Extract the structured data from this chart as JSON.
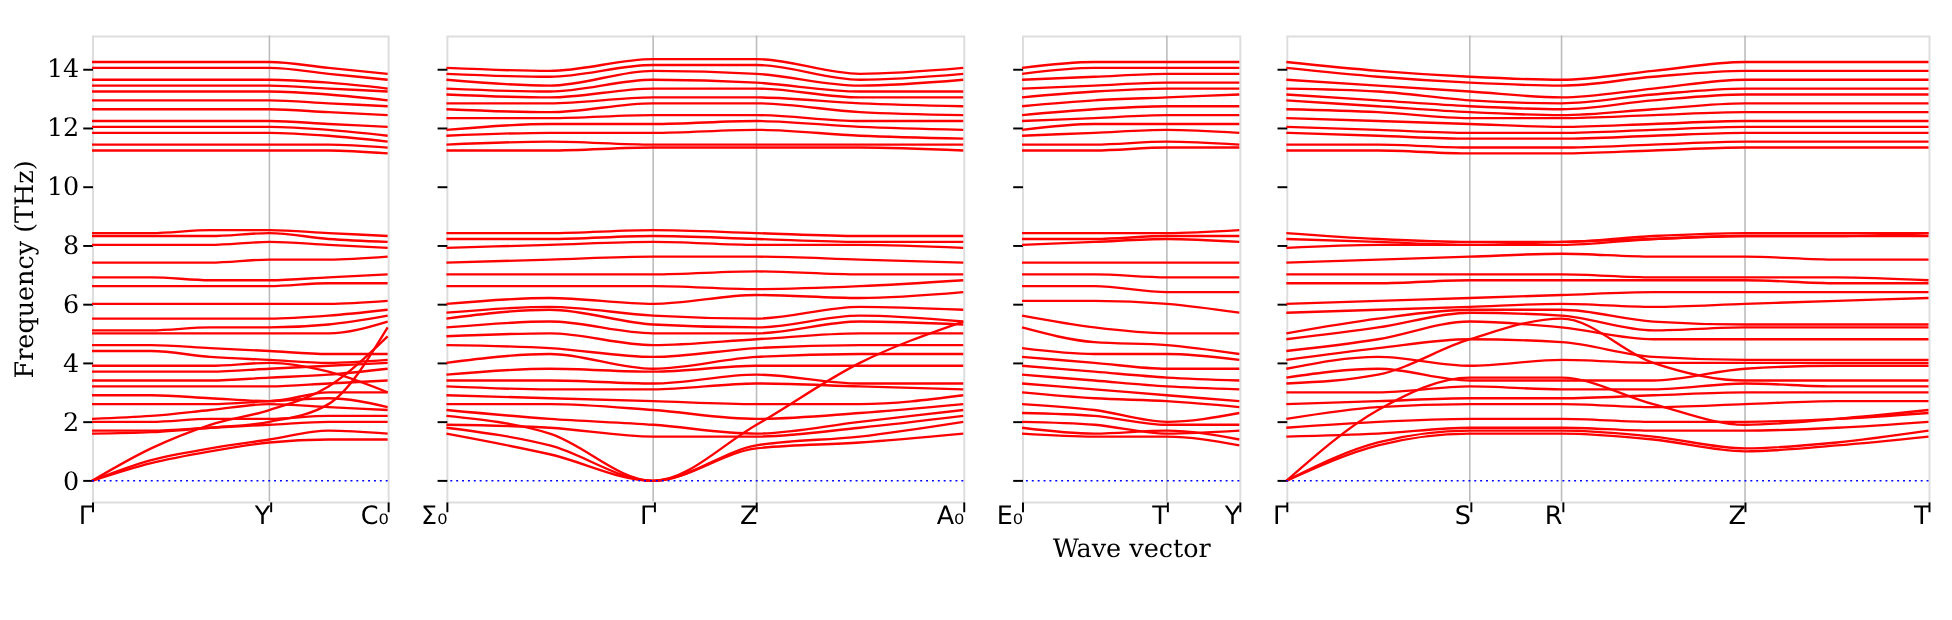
{
  "chart_data": [
    {
      "type": "line",
      "ylabel": "Frequency (THz)",
      "categories": [
        "Γ",
        null,
        null,
        "Y",
        null,
        "C₀"
      ],
      "ylim": [
        -0.7,
        15.1
      ],
      "yticks": [
        0,
        2,
        4,
        6,
        8,
        10,
        12,
        14
      ],
      "marker": "none",
      "line_style": "solid",
      "legend": false,
      "ref_lines": [
        {
          "axis": "y",
          "value": 0,
          "color": "#0000ff",
          "line_style": "dotted"
        },
        {
          "axis": "x",
          "value": "Y",
          "color": "#bbbbbb",
          "line_style": "solid"
        }
      ],
      "series": [
        {
          "color": "#ff0000",
          "values": [
            0,
            0.6,
            1.0,
            1.3,
            1.4,
            1.4
          ]
        },
        {
          "color": "#ff0000",
          "values": [
            0,
            0.7,
            1.1,
            1.4,
            1.7,
            1.6
          ]
        },
        {
          "color": "#ff0000",
          "values": [
            0,
            1.1,
            1.9,
            2.4,
            3.2,
            4.9
          ]
        },
        {
          "color": "#ff0000",
          "values": [
            1.6,
            1.65,
            1.8,
            2.0,
            2.6,
            5.2
          ]
        },
        {
          "color": "#ff0000",
          "values": [
            1.7,
            1.7,
            1.8,
            1.9,
            2.0,
            2.0
          ]
        },
        {
          "color": "#ff0000",
          "values": [
            2.0,
            2.0,
            2.1,
            2.1,
            2.2,
            2.2
          ]
        },
        {
          "color": "#ff0000",
          "values": [
            2.1,
            2.2,
            2.4,
            2.6,
            2.5,
            2.4
          ]
        },
        {
          "color": "#ff0000",
          "values": [
            2.6,
            2.6,
            2.6,
            2.7,
            2.8,
            2.5
          ]
        },
        {
          "color": "#ff0000",
          "values": [
            2.9,
            2.9,
            2.8,
            2.7,
            3.0,
            3.0
          ]
        },
        {
          "color": "#ff0000",
          "values": [
            3.2,
            3.2,
            3.2,
            3.2,
            3.3,
            3.4
          ]
        },
        {
          "color": "#ff0000",
          "values": [
            3.4,
            3.4,
            3.4,
            3.5,
            3.6,
            3.8
          ]
        },
        {
          "color": "#ff0000",
          "values": [
            3.7,
            3.7,
            3.7,
            3.8,
            3.9,
            4.0
          ]
        },
        {
          "color": "#ff0000",
          "values": [
            3.9,
            3.9,
            3.9,
            4.0,
            3.7,
            3.0
          ]
        },
        {
          "color": "#ff0000",
          "values": [
            4.4,
            4.4,
            4.2,
            4.1,
            4.0,
            4.1
          ]
        },
        {
          "color": "#ff0000",
          "values": [
            4.6,
            4.6,
            4.5,
            4.4,
            4.3,
            4.3
          ]
        },
        {
          "color": "#ff0000",
          "values": [
            5.0,
            5.0,
            5.0,
            5.0,
            5.0,
            5.4
          ]
        },
        {
          "color": "#ff0000",
          "values": [
            5.1,
            5.1,
            5.2,
            5.2,
            5.3,
            5.6
          ]
        },
        {
          "color": "#ff0000",
          "values": [
            5.5,
            5.5,
            5.5,
            5.5,
            5.6,
            5.8
          ]
        },
        {
          "color": "#ff0000",
          "values": [
            6.0,
            6.0,
            6.0,
            6.0,
            6.0,
            6.1
          ]
        },
        {
          "color": "#ff0000",
          "values": [
            6.6,
            6.6,
            6.6,
            6.6,
            6.7,
            6.7
          ]
        },
        {
          "color": "#ff0000",
          "values": [
            6.9,
            6.9,
            6.8,
            6.8,
            6.9,
            7.0
          ]
        },
        {
          "color": "#ff0000",
          "values": [
            7.4,
            7.4,
            7.4,
            7.5,
            7.5,
            7.6
          ]
        },
        {
          "color": "#ff0000",
          "values": [
            8.0,
            8.0,
            8.0,
            8.1,
            8.0,
            7.9
          ]
        },
        {
          "color": "#ff0000",
          "values": [
            8.3,
            8.3,
            8.3,
            8.4,
            8.2,
            8.1
          ]
        },
        {
          "color": "#ff0000",
          "values": [
            8.4,
            8.4,
            8.5,
            8.5,
            8.4,
            8.3
          ]
        },
        {
          "color": "#ff0000",
          "values": [
            11.2,
            11.2,
            11.2,
            11.2,
            11.2,
            11.1
          ]
        },
        {
          "color": "#ff0000",
          "values": [
            11.4,
            11.4,
            11.4,
            11.4,
            11.4,
            11.3
          ]
        },
        {
          "color": "#ff0000",
          "values": [
            11.8,
            11.8,
            11.8,
            11.8,
            11.7,
            11.5
          ]
        },
        {
          "color": "#ff0000",
          "values": [
            12.0,
            12.0,
            12.0,
            12.0,
            11.9,
            11.7
          ]
        },
        {
          "color": "#ff0000",
          "values": [
            12.2,
            12.2,
            12.2,
            12.2,
            12.1,
            12.0
          ]
        },
        {
          "color": "#ff0000",
          "values": [
            12.6,
            12.6,
            12.6,
            12.6,
            12.5,
            12.4
          ]
        },
        {
          "color": "#ff0000",
          "values": [
            12.9,
            12.9,
            12.9,
            12.9,
            12.8,
            12.7
          ]
        },
        {
          "color": "#ff0000",
          "values": [
            13.2,
            13.2,
            13.2,
            13.2,
            13.1,
            12.9
          ]
        },
        {
          "color": "#ff0000",
          "values": [
            13.4,
            13.4,
            13.4,
            13.4,
            13.3,
            13.2
          ]
        },
        {
          "color": "#ff0000",
          "values": [
            13.6,
            13.6,
            13.6,
            13.6,
            13.5,
            13.3
          ]
        },
        {
          "color": "#ff0000",
          "values": [
            14.0,
            14.0,
            14.0,
            14.0,
            13.8,
            13.6
          ]
        },
        {
          "color": "#ff0000",
          "values": [
            14.2,
            14.2,
            14.2,
            14.2,
            14.0,
            13.8
          ]
        }
      ]
    },
    {
      "type": "line",
      "categories": [
        "Σ₀",
        null,
        "Γ",
        "Z",
        null,
        "A₀"
      ],
      "ylim": [
        -0.7,
        15.1
      ],
      "yticks": [
        0,
        2,
        4,
        6,
        8,
        10,
        12,
        14
      ],
      "tick_labels": "x",
      "marker": "none",
      "line_style": "solid",
      "legend": false,
      "ref_lines": [
        {
          "axis": "y",
          "value": 0,
          "color": "#0000ff",
          "line_style": "dotted"
        },
        {
          "axis": "x",
          "value": "Γ",
          "color": "#bbbbbb",
          "line_style": "solid"
        },
        {
          "axis": "x",
          "value": "Z",
          "color": "#bbbbbb",
          "line_style": "solid"
        }
      ],
      "series": [
        {
          "color": "#ff0000",
          "values": [
            1.6,
            0.9,
            0,
            1.1,
            1.3,
            1.6
          ]
        },
        {
          "color": "#ff0000",
          "values": [
            1.8,
            1.2,
            0,
            1.2,
            1.5,
            2.0
          ]
        },
        {
          "color": "#ff0000",
          "values": [
            2.2,
            1.6,
            0,
            1.9,
            4.0,
            5.4
          ]
        },
        {
          "color": "#ff0000",
          "values": [
            1.9,
            1.8,
            1.5,
            1.5,
            1.8,
            2.2
          ]
        },
        {
          "color": "#ff0000",
          "values": [
            2.4,
            2.1,
            1.9,
            1.6,
            2.0,
            2.4
          ]
        },
        {
          "color": "#ff0000",
          "values": [
            2.6,
            2.6,
            2.4,
            2.1,
            2.3,
            2.6
          ]
        },
        {
          "color": "#ff0000",
          "values": [
            2.9,
            2.8,
            2.7,
            2.6,
            2.6,
            2.9
          ]
        },
        {
          "color": "#ff0000",
          "values": [
            3.2,
            3.1,
            3.1,
            3.3,
            3.2,
            3.1
          ]
        },
        {
          "color": "#ff0000",
          "values": [
            3.4,
            3.4,
            3.3,
            3.6,
            3.3,
            3.3
          ]
        },
        {
          "color": "#ff0000",
          "values": [
            3.6,
            3.8,
            3.7,
            3.9,
            3.9,
            3.9
          ]
        },
        {
          "color": "#ff0000",
          "values": [
            4.0,
            4.3,
            3.8,
            4.2,
            4.3,
            4.3
          ]
        },
        {
          "color": "#ff0000",
          "values": [
            4.6,
            4.5,
            4.2,
            4.5,
            4.6,
            4.6
          ]
        },
        {
          "color": "#ff0000",
          "values": [
            4.9,
            5.0,
            4.6,
            4.8,
            5.0,
            5.0
          ]
        },
        {
          "color": "#ff0000",
          "values": [
            5.2,
            5.4,
            5.0,
            5.0,
            5.4,
            5.3
          ]
        },
        {
          "color": "#ff0000",
          "values": [
            5.5,
            5.8,
            5.3,
            5.2,
            5.6,
            5.4
          ]
        },
        {
          "color": "#ff0000",
          "values": [
            5.7,
            5.9,
            5.6,
            5.5,
            5.9,
            5.8
          ]
        },
        {
          "color": "#ff0000",
          "values": [
            6.0,
            6.2,
            6.0,
            6.3,
            6.2,
            6.4
          ]
        },
        {
          "color": "#ff0000",
          "values": [
            6.6,
            6.6,
            6.6,
            6.5,
            6.6,
            6.8
          ]
        },
        {
          "color": "#ff0000",
          "values": [
            7.0,
            7.0,
            7.0,
            7.1,
            7.0,
            7.0
          ]
        },
        {
          "color": "#ff0000",
          "values": [
            7.4,
            7.5,
            7.6,
            7.6,
            7.5,
            7.4
          ]
        },
        {
          "color": "#ff0000",
          "values": [
            7.9,
            8.0,
            8.1,
            8.0,
            8.0,
            7.9
          ]
        },
        {
          "color": "#ff0000",
          "values": [
            8.2,
            8.2,
            8.3,
            8.2,
            8.1,
            8.1
          ]
        },
        {
          "color": "#ff0000",
          "values": [
            8.4,
            8.4,
            8.5,
            8.4,
            8.3,
            8.3
          ]
        },
        {
          "color": "#ff0000",
          "values": [
            11.2,
            11.2,
            11.3,
            11.3,
            11.3,
            11.2
          ]
        },
        {
          "color": "#ff0000",
          "values": [
            11.4,
            11.5,
            11.4,
            11.4,
            11.4,
            11.4
          ]
        },
        {
          "color": "#ff0000",
          "values": [
            11.7,
            11.8,
            11.8,
            11.9,
            11.7,
            11.6
          ]
        },
        {
          "color": "#ff0000",
          "values": [
            11.9,
            12.1,
            12.1,
            12.2,
            12.0,
            11.9
          ]
        },
        {
          "color": "#ff0000",
          "values": [
            12.3,
            12.3,
            12.4,
            12.4,
            12.2,
            12.2
          ]
        },
        {
          "color": "#ff0000",
          "values": [
            12.6,
            12.5,
            12.8,
            12.8,
            12.5,
            12.4
          ]
        },
        {
          "color": "#ff0000",
          "values": [
            12.8,
            12.8,
            13.0,
            13.0,
            12.8,
            12.7
          ]
        },
        {
          "color": "#ff0000",
          "values": [
            13.1,
            13.0,
            13.3,
            13.3,
            13.0,
            13.0
          ]
        },
        {
          "color": "#ff0000",
          "values": [
            13.3,
            13.2,
            13.6,
            13.5,
            13.2,
            13.2
          ]
        },
        {
          "color": "#ff0000",
          "values": [
            13.6,
            13.4,
            13.9,
            13.8,
            13.4,
            13.6
          ]
        },
        {
          "color": "#ff0000",
          "values": [
            13.8,
            13.7,
            14.1,
            14.1,
            13.6,
            13.8
          ]
        },
        {
          "color": "#ff0000",
          "values": [
            14.0,
            13.9,
            14.3,
            14.3,
            13.8,
            14.0
          ]
        }
      ]
    },
    {
      "type": "line",
      "xlabel": "Wave vector",
      "categories": [
        "E₀",
        null,
        "T",
        "Y"
      ],
      "ylim": [
        -0.7,
        15.1
      ],
      "yticks": [
        0,
        2,
        4,
        6,
        8,
        10,
        12,
        14
      ],
      "tick_labels": "x",
      "marker": "none",
      "line_style": "solid",
      "legend": false,
      "ref_lines": [
        {
          "axis": "y",
          "value": 0,
          "color": "#0000ff",
          "line_style": "dotted"
        },
        {
          "axis": "x",
          "value": "T",
          "color": "#bbbbbb",
          "line_style": "solid"
        }
      ],
      "series": [
        {
          "color": "#ff0000",
          "values": [
            1.6,
            1.5,
            1.5,
            1.2
          ]
        },
        {
          "color": "#ff0000",
          "values": [
            1.8,
            1.6,
            1.7,
            1.4
          ]
        },
        {
          "color": "#ff0000",
          "values": [
            2.0,
            1.9,
            1.6,
            1.7
          ]
        },
        {
          "color": "#ff0000",
          "values": [
            2.3,
            2.2,
            1.9,
            1.9
          ]
        },
        {
          "color": "#ff0000",
          "values": [
            2.6,
            2.4,
            2.0,
            2.3
          ]
        },
        {
          "color": "#ff0000",
          "values": [
            3.0,
            2.8,
            2.7,
            2.5
          ]
        },
        {
          "color": "#ff0000",
          "values": [
            3.3,
            3.1,
            2.9,
            2.7
          ]
        },
        {
          "color": "#ff0000",
          "values": [
            3.6,
            3.4,
            3.2,
            3.1
          ]
        },
        {
          "color": "#ff0000",
          "values": [
            3.9,
            3.7,
            3.5,
            3.4
          ]
        },
        {
          "color": "#ff0000",
          "values": [
            4.2,
            4.0,
            3.8,
            3.8
          ]
        },
        {
          "color": "#ff0000",
          "values": [
            4.5,
            4.3,
            4.3,
            4.1
          ]
        },
        {
          "color": "#ff0000",
          "values": [
            5.2,
            4.7,
            4.6,
            4.3
          ]
        },
        {
          "color": "#ff0000",
          "values": [
            5.6,
            5.2,
            5.0,
            5.0
          ]
        },
        {
          "color": "#ff0000",
          "values": [
            6.1,
            6.1,
            6.0,
            5.7
          ]
        },
        {
          "color": "#ff0000",
          "values": [
            6.6,
            6.6,
            6.4,
            6.4
          ]
        },
        {
          "color": "#ff0000",
          "values": [
            7.0,
            7.0,
            6.9,
            6.9
          ]
        },
        {
          "color": "#ff0000",
          "values": [
            7.4,
            7.4,
            7.4,
            7.4
          ]
        },
        {
          "color": "#ff0000",
          "values": [
            8.0,
            8.1,
            8.2,
            8.1
          ]
        },
        {
          "color": "#ff0000",
          "values": [
            8.2,
            8.2,
            8.3,
            8.3
          ]
        },
        {
          "color": "#ff0000",
          "values": [
            8.4,
            8.4,
            8.4,
            8.5
          ]
        },
        {
          "color": "#ff0000",
          "values": [
            11.2,
            11.2,
            11.3,
            11.3
          ]
        },
        {
          "color": "#ff0000",
          "values": [
            11.4,
            11.4,
            11.5,
            11.4
          ]
        },
        {
          "color": "#ff0000",
          "values": [
            11.7,
            11.8,
            11.9,
            11.8
          ]
        },
        {
          "color": "#ff0000",
          "values": [
            11.9,
            12.1,
            12.1,
            12.1
          ]
        },
        {
          "color": "#ff0000",
          "values": [
            12.2,
            12.3,
            12.4,
            12.4
          ]
        },
        {
          "color": "#ff0000",
          "values": [
            12.4,
            12.6,
            12.7,
            12.7
          ]
        },
        {
          "color": "#ff0000",
          "values": [
            12.7,
            12.9,
            13.0,
            13.1
          ]
        },
        {
          "color": "#ff0000",
          "values": [
            13.0,
            13.2,
            13.3,
            13.3
          ]
        },
        {
          "color": "#ff0000",
          "values": [
            13.3,
            13.4,
            13.5,
            13.5
          ]
        },
        {
          "color": "#ff0000",
          "values": [
            13.6,
            13.7,
            13.8,
            13.8
          ]
        },
        {
          "color": "#ff0000",
          "values": [
            13.8,
            14.0,
            14.0,
            14.0
          ]
        },
        {
          "color": "#ff0000",
          "values": [
            14.0,
            14.2,
            14.2,
            14.2
          ]
        }
      ]
    },
    {
      "type": "line",
      "categories": [
        "Γ",
        null,
        "S",
        "R",
        null,
        "Z",
        null,
        "T"
      ],
      "ylim": [
        -0.7,
        15.1
      ],
      "yticks": [
        0,
        2,
        4,
        6,
        8,
        10,
        12,
        14
      ],
      "tick_labels": "x",
      "marker": "none",
      "line_style": "solid",
      "legend": false,
      "ref_lines": [
        {
          "axis": "y",
          "value": 0,
          "color": "#0000ff",
          "line_style": "dotted"
        },
        {
          "axis": "x",
          "value": "S",
          "color": "#bbbbbb",
          "line_style": "solid"
        },
        {
          "axis": "x",
          "value": "R",
          "color": "#bbbbbb",
          "line_style": "solid"
        },
        {
          "axis": "x",
          "value": "Z",
          "color": "#bbbbbb",
          "line_style": "solid"
        }
      ],
      "series": [
        {
          "color": "#ff0000",
          "values": [
            0,
            1.2,
            1.6,
            1.6,
            1.4,
            1.0,
            1.2,
            1.5
          ]
        },
        {
          "color": "#ff0000",
          "values": [
            0,
            1.3,
            1.7,
            1.7,
            1.5,
            1.1,
            1.3,
            1.7
          ]
        },
        {
          "color": "#ff0000",
          "values": [
            0,
            2.4,
            3.5,
            3.5,
            2.6,
            1.9,
            2.1,
            2.4
          ]
        },
        {
          "color": "#ff0000",
          "values": [
            1.5,
            1.6,
            1.8,
            1.8,
            1.7,
            1.7,
            1.8,
            2.0
          ]
        },
        {
          "color": "#ff0000",
          "values": [
            1.8,
            2.0,
            2.1,
            2.1,
            2.0,
            2.0,
            2.1,
            2.3
          ]
        },
        {
          "color": "#ff0000",
          "values": [
            2.1,
            2.5,
            2.6,
            2.6,
            2.5,
            2.6,
            2.7,
            2.7
          ]
        },
        {
          "color": "#ff0000",
          "values": [
            2.6,
            2.7,
            2.8,
            2.8,
            2.9,
            3.0,
            3.0,
            3.0
          ]
        },
        {
          "color": "#ff0000",
          "values": [
            3.0,
            3.0,
            3.2,
            3.1,
            3.1,
            3.3,
            3.2,
            3.2
          ]
        },
        {
          "color": "#ff0000",
          "values": [
            3.3,
            3.6,
            4.8,
            5.5,
            4.0,
            3.4,
            3.4,
            3.4
          ]
        },
        {
          "color": "#ff0000",
          "values": [
            3.5,
            3.8,
            3.4,
            3.4,
            3.4,
            3.8,
            3.9,
            3.9
          ]
        },
        {
          "color": "#ff0000",
          "values": [
            3.8,
            4.2,
            3.9,
            4.1,
            4.0,
            4.0,
            4.0,
            4.0
          ]
        },
        {
          "color": "#ff0000",
          "values": [
            4.1,
            4.5,
            4.8,
            4.7,
            4.2,
            4.1,
            4.1,
            4.1
          ]
        },
        {
          "color": "#ff0000",
          "values": [
            4.4,
            4.8,
            5.4,
            5.2,
            4.8,
            4.8,
            4.8,
            4.8
          ]
        },
        {
          "color": "#ff0000",
          "values": [
            4.8,
            5.2,
            5.7,
            5.6,
            5.1,
            5.2,
            5.2,
            5.2
          ]
        },
        {
          "color": "#ff0000",
          "values": [
            5.0,
            5.5,
            5.8,
            5.8,
            5.4,
            5.3,
            5.3,
            5.3
          ]
        },
        {
          "color": "#ff0000",
          "values": [
            5.7,
            5.8,
            5.9,
            6.0,
            5.9,
            6.0,
            6.1,
            6.2
          ]
        },
        {
          "color": "#ff0000",
          "values": [
            6.0,
            6.1,
            6.2,
            6.3,
            6.4,
            6.4,
            6.4,
            6.4
          ]
        },
        {
          "color": "#ff0000",
          "values": [
            6.7,
            6.7,
            6.8,
            6.8,
            6.8,
            6.8,
            6.7,
            6.7
          ]
        },
        {
          "color": "#ff0000",
          "values": [
            7.0,
            7.0,
            7.0,
            7.0,
            6.9,
            6.9,
            6.9,
            6.8
          ]
        },
        {
          "color": "#ff0000",
          "values": [
            7.4,
            7.5,
            7.6,
            7.7,
            7.6,
            7.6,
            7.5,
            7.5
          ]
        },
        {
          "color": "#ff0000",
          "values": [
            7.9,
            8.0,
            8.0,
            8.1,
            8.2,
            8.3,
            8.3,
            8.3
          ]
        },
        {
          "color": "#ff0000",
          "values": [
            8.2,
            8.1,
            8.0,
            8.0,
            8.2,
            8.3,
            8.3,
            8.4
          ]
        },
        {
          "color": "#ff0000",
          "values": [
            8.4,
            8.2,
            8.1,
            8.1,
            8.3,
            8.4,
            8.4,
            8.4
          ]
        },
        {
          "color": "#ff0000",
          "values": [
            11.2,
            11.2,
            11.1,
            11.1,
            11.2,
            11.3,
            11.3,
            11.3
          ]
        },
        {
          "color": "#ff0000",
          "values": [
            11.4,
            11.4,
            11.3,
            11.3,
            11.4,
            11.5,
            11.5,
            11.5
          ]
        },
        {
          "color": "#ff0000",
          "values": [
            11.8,
            11.7,
            11.6,
            11.6,
            11.7,
            11.8,
            11.8,
            11.8
          ]
        },
        {
          "color": "#ff0000",
          "values": [
            12.0,
            11.9,
            11.8,
            11.8,
            11.9,
            12.0,
            12.0,
            12.0
          ]
        },
        {
          "color": "#ff0000",
          "values": [
            12.3,
            12.2,
            12.1,
            12.0,
            12.1,
            12.2,
            12.2,
            12.2
          ]
        },
        {
          "color": "#ff0000",
          "values": [
            12.6,
            12.5,
            12.3,
            12.3,
            12.4,
            12.5,
            12.5,
            12.5
          ]
        },
        {
          "color": "#ff0000",
          "values": [
            12.9,
            12.7,
            12.5,
            12.4,
            12.6,
            12.8,
            12.8,
            12.8
          ]
        },
        {
          "color": "#ff0000",
          "values": [
            13.1,
            12.9,
            12.7,
            12.6,
            12.9,
            13.1,
            13.1,
            13.1
          ]
        },
        {
          "color": "#ff0000",
          "values": [
            13.3,
            13.2,
            12.9,
            12.8,
            13.1,
            13.3,
            13.3,
            13.3
          ]
        },
        {
          "color": "#ff0000",
          "values": [
            13.6,
            13.4,
            13.2,
            13.0,
            13.3,
            13.6,
            13.6,
            13.6
          ]
        },
        {
          "color": "#ff0000",
          "values": [
            14.0,
            13.7,
            13.5,
            13.4,
            13.7,
            13.9,
            13.9,
            13.9
          ]
        },
        {
          "color": "#ff0000",
          "values": [
            14.2,
            13.9,
            13.7,
            13.6,
            13.9,
            14.2,
            14.2,
            14.2
          ]
        }
      ]
    }
  ]
}
